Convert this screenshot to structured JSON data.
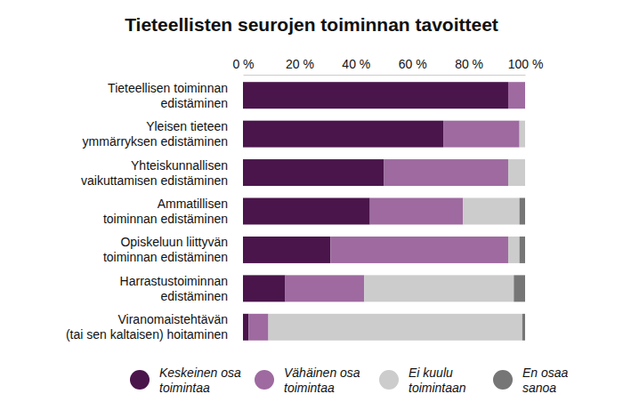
{
  "chart_data": {
    "type": "bar",
    "title": "Tieteellisten seurojen toiminnan tavoitteet",
    "orientation": "horizontal",
    "stacked": true,
    "legend": "bottom",
    "grid": false,
    "categories": [
      "Tieteellisen toiminnan\nedistäminen",
      "Yleisen tieteen\nymmärryksen edistäminen",
      "Yhteiskunnallisen\nvaikuttamisen edistäminen",
      "Ammatillisen\ntoiminnan edistäminen",
      "Opiskeluun liittyvän\ntoiminnan edistäminen",
      "Harrastustoiminnan\nedistäminen",
      "Viranomaistehtävän\n(tai sen kaltaisen) hoitaminen"
    ],
    "series": [
      {
        "name": "Keskeinen osa\ntoimintaa",
        "color": "#4a154b",
        "values": [
          94,
          71,
          50,
          45,
          31,
          15,
          2
        ]
      },
      {
        "name": "Vähäinen osa\ntoimintaa",
        "color": "#9e6aa0",
        "values": [
          6,
          27,
          44,
          33,
          63,
          28,
          7
        ]
      },
      {
        "name": "Ei kuulu\ntoimintaan",
        "color": "#cccccc",
        "values": [
          0,
          2,
          6,
          20,
          4,
          53,
          90
        ]
      },
      {
        "name": "En osaa\nsanoa",
        "color": "#767676",
        "values": [
          0,
          0,
          0,
          2,
          2,
          4,
          1
        ]
      }
    ],
    "xlim": [
      0,
      100
    ],
    "xticks": [
      {
        "value": 0,
        "label": "0 %"
      },
      {
        "value": 20,
        "label": "20 %"
      },
      {
        "value": 40,
        "label": "40 %"
      },
      {
        "value": 60,
        "label": "60 %"
      },
      {
        "value": 80,
        "label": "80 %"
      },
      {
        "value": 100,
        "label": "100 %"
      }
    ]
  }
}
